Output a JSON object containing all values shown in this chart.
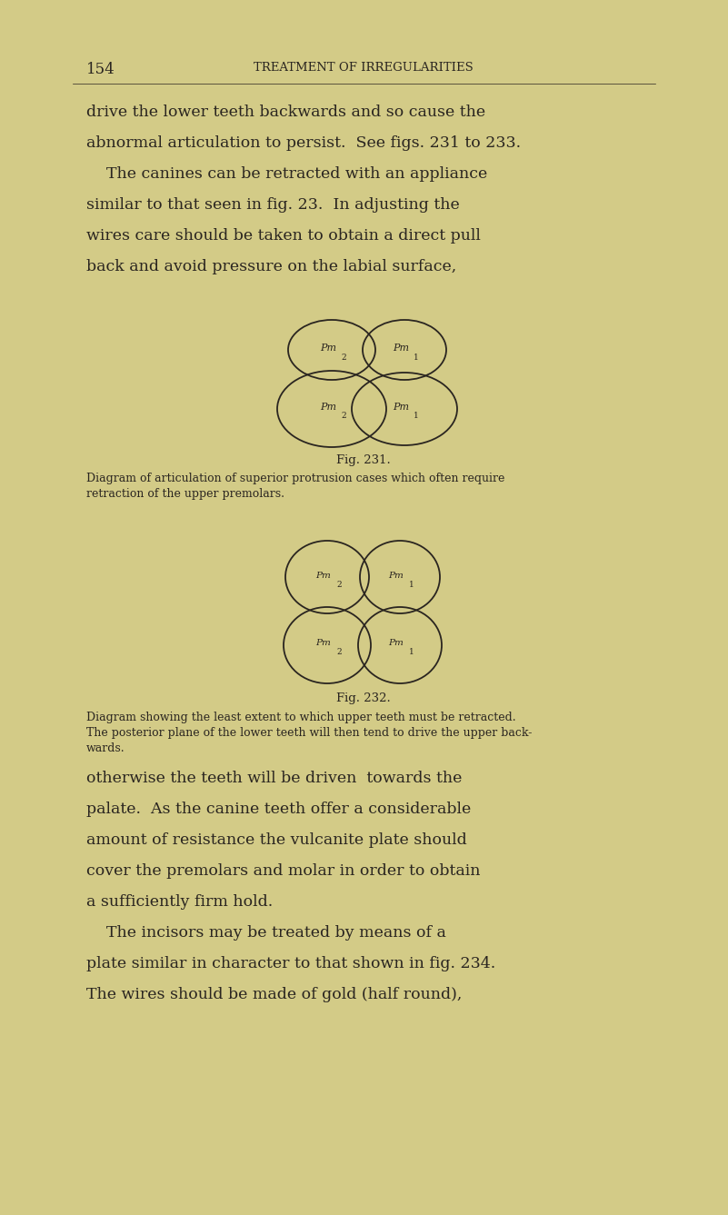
{
  "bg_color": "#d3cb87",
  "text_color": "#2a2520",
  "page_number": "154",
  "header": "TREATMENT OF IRREGULARITIES",
  "body1_lines": [
    "drive the lower teeth backwards and so cause the",
    "abnormal articulation to persist.  See figs. 231 to 233.",
    "    The canines can be retracted with an appliance",
    "similar to that seen in fig. 23.  In adjusting the",
    "wires care should be taken to obtain a direct pull",
    "back and avoid pressure on the labial surface,"
  ],
  "fig231_label": "Fig. 231.",
  "fig231_caption_line1": "Diagram of articulation of superior protrusion cases which often require",
  "fig231_caption_line2": "retraction of the upper premolars.",
  "fig232_label": "Fig. 232.",
  "fig232_caption_line1": "Diagram showing the least extent to which upper teeth must be retracted.",
  "fig232_caption_line2": "The posterior plane of the lower teeth will then tend to drive the upper back-",
  "fig232_caption_line3": "wards.",
  "body2_lines": [
    "otherwise the teeth will be driven  towards the",
    "palate.  As the canine teeth offer a considerable",
    "amount of resistance the vulcanite plate should",
    "cover the premolars and molar in order to obtain",
    "a sufficiently firm hold.",
    "    The incisors may be treated by means of a",
    "plate similar in character to that shown in fig. 234.",
    "The wires should be made of gold (half round),"
  ]
}
